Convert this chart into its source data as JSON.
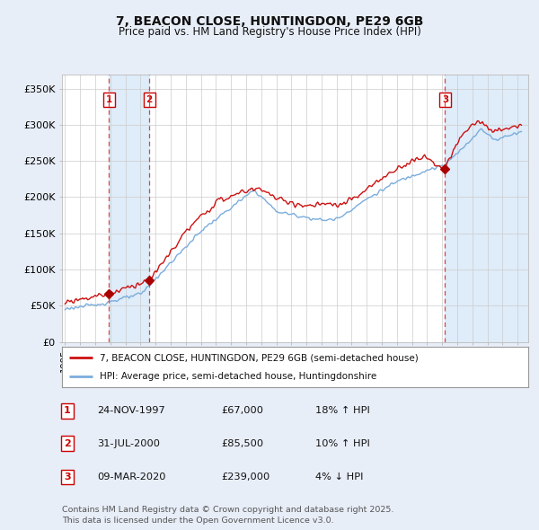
{
  "title1": "7, BEACON CLOSE, HUNTINGDON, PE29 6GB",
  "title2": "Price paid vs. HM Land Registry's House Price Index (HPI)",
  "ylabel_ticks": [
    "£0",
    "£50K",
    "£100K",
    "£150K",
    "£200K",
    "£250K",
    "£300K",
    "£350K"
  ],
  "ytick_vals": [
    0,
    50000,
    100000,
    150000,
    200000,
    250000,
    300000,
    350000
  ],
  "ylim": [
    0,
    370000
  ],
  "xlim_start": 1994.8,
  "xlim_end": 2025.7,
  "xticks": [
    1995,
    1996,
    1997,
    1998,
    1999,
    2000,
    2001,
    2002,
    2003,
    2004,
    2005,
    2006,
    2007,
    2008,
    2009,
    2010,
    2011,
    2012,
    2013,
    2014,
    2015,
    2016,
    2017,
    2018,
    2019,
    2020,
    2021,
    2022,
    2023,
    2024,
    2025
  ],
  "sale_dates": [
    1997.9,
    2000.58,
    2020.19
  ],
  "sale_prices": [
    67000,
    85500,
    239000
  ],
  "sale_labels": [
    "1",
    "2",
    "3"
  ],
  "vline_color": "#dd4444",
  "sale_dot_color": "#aa0000",
  "line_red_color": "#cc1111",
  "line_blue_color": "#7aaddd",
  "shade_color": "#d8e8f8",
  "bg_color": "#e8eef8",
  "plot_bg_color": "#ffffff",
  "grid_color": "#cccccc",
  "legend_label_red": "7, BEACON CLOSE, HUNTINGDON, PE29 6GB (semi-detached house)",
  "legend_label_blue": "HPI: Average price, semi-detached house, Huntingdonshire",
  "table_rows": [
    {
      "num": "1",
      "date": "24-NOV-1997",
      "price": "£67,000",
      "hpi": "18% ↑ HPI"
    },
    {
      "num": "2",
      "date": "31-JUL-2000",
      "price": "£85,500",
      "hpi": "10% ↑ HPI"
    },
    {
      "num": "3",
      "date": "09-MAR-2020",
      "price": "£239,000",
      "hpi": "4% ↓ HPI"
    }
  ],
  "footnote": "Contains HM Land Registry data © Crown copyright and database right 2025.\nThis data is licensed under the Open Government Licence v3.0."
}
